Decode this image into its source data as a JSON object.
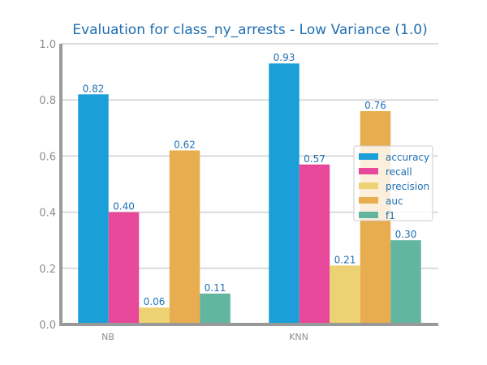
{
  "chart_data": {
    "type": "bar",
    "title": "Evaluation for class_ny_arrests - Low Variance (1.0)",
    "xlabel": "",
    "ylabel": "",
    "categories": [
      "NB",
      "KNN"
    ],
    "ylim": [
      0,
      1.0
    ],
    "yticks": [
      "0.0",
      "0.2",
      "0.4",
      "0.6",
      "0.8",
      "1.0"
    ],
    "grid": true,
    "legend_position": "right",
    "series": [
      {
        "name": "accuracy",
        "color": "#1a9fd9",
        "values": [
          0.82,
          0.93
        ],
        "labels": [
          "0.82",
          "0.93"
        ]
      },
      {
        "name": "recall",
        "color": "#e8489a",
        "values": [
          0.4,
          0.57
        ],
        "labels": [
          "0.40",
          "0.57"
        ]
      },
      {
        "name": "precision",
        "color": "#ecd272",
        "values": [
          0.06,
          0.21
        ],
        "labels": [
          "0.06",
          "0.21"
        ]
      },
      {
        "name": "auc",
        "color": "#e8ad4e",
        "values": [
          0.62,
          0.76
        ],
        "labels": [
          "0.62",
          "0.76"
        ]
      },
      {
        "name": "f1",
        "color": "#62b59e",
        "values": [
          0.11,
          0.3
        ],
        "labels": [
          "0.11",
          "0.30"
        ]
      }
    ]
  }
}
